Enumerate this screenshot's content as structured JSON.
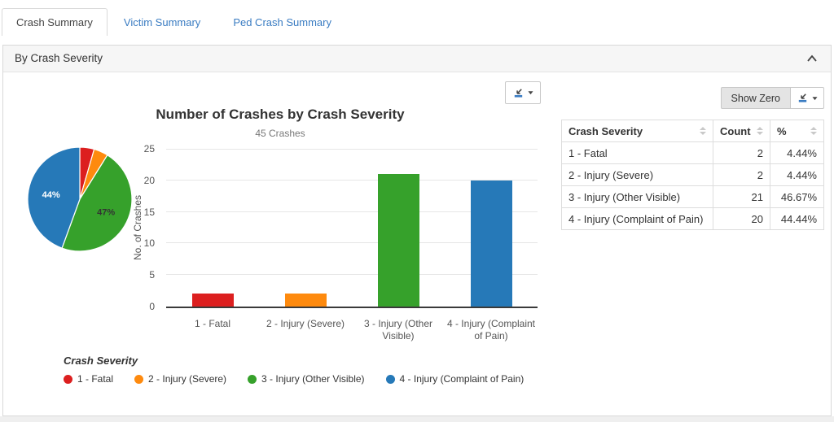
{
  "tabs": {
    "items": [
      {
        "label": "Crash Summary",
        "active": true
      },
      {
        "label": "Victim Summary",
        "active": false
      },
      {
        "label": "Ped Crash Summary",
        "active": false
      }
    ]
  },
  "panel": {
    "title": "By Crash Severity"
  },
  "controls": {
    "show_zero_label": "Show Zero"
  },
  "chart": {
    "title": "Number of Crashes by Crash Severity",
    "subtitle": "45 Crashes",
    "ylabel": "No. of Crashes",
    "legend_title": "Crash Severity"
  },
  "chart_data": [
    {
      "type": "pie",
      "title": "Crash Severity share",
      "categories": [
        "1 - Fatal",
        "2 - Injury (Severe)",
        "3 - Injury (Other Visible)",
        "4 - Injury (Complaint of Pain)"
      ],
      "values": [
        4.44,
        4.44,
        46.67,
        44.44
      ],
      "unit": "%",
      "colors": [
        "#dc1f1f",
        "#fe8a0e",
        "#36a12b",
        "#2679b8"
      ],
      "slice_labels": [
        "",
        "",
        "47%",
        "44%"
      ],
      "slice_label_colors": [
        "",
        "",
        "#333333",
        "#ffffff"
      ],
      "start_angle_deg": 0,
      "direction": "clockwise",
      "legend_position": "bottom"
    },
    {
      "type": "bar",
      "title": "Number of Crashes by Crash Severity",
      "subtitle": "45 Crashes",
      "categories": [
        "1 - Fatal",
        "2 - Injury (Severe)",
        "3 - Injury (Other Visible)",
        "4 - Injury (Complaint of Pain)"
      ],
      "values": [
        2,
        2,
        21,
        20
      ],
      "colors": [
        "#dc1f1f",
        "#fe8a0e",
        "#36a12b",
        "#2679b8"
      ],
      "xlabel": "",
      "ylabel": "No. of Crashes",
      "ylim": [
        0,
        25
      ],
      "yticks": [
        0,
        5,
        10,
        15,
        20,
        25
      ],
      "grid": true,
      "legend_position": "bottom"
    }
  ],
  "table": {
    "columns": [
      "Crash Severity",
      "Count",
      "%"
    ],
    "rows": [
      [
        "1 - Fatal",
        "2",
        "4.44%"
      ],
      [
        "2 - Injury (Severe)",
        "2",
        "4.44%"
      ],
      [
        "3 - Injury (Other Visible)",
        "21",
        "46.67%"
      ],
      [
        "4 - Injury (Complaint of Pain)",
        "20",
        "44.44%"
      ]
    ]
  },
  "colors": {
    "series": [
      "#dc1f1f",
      "#fe8a0e",
      "#36a12b",
      "#2679b8"
    ],
    "link": "#3a7cc2",
    "grid": "#e6e6e6",
    "border": "#d9d9d9"
  }
}
